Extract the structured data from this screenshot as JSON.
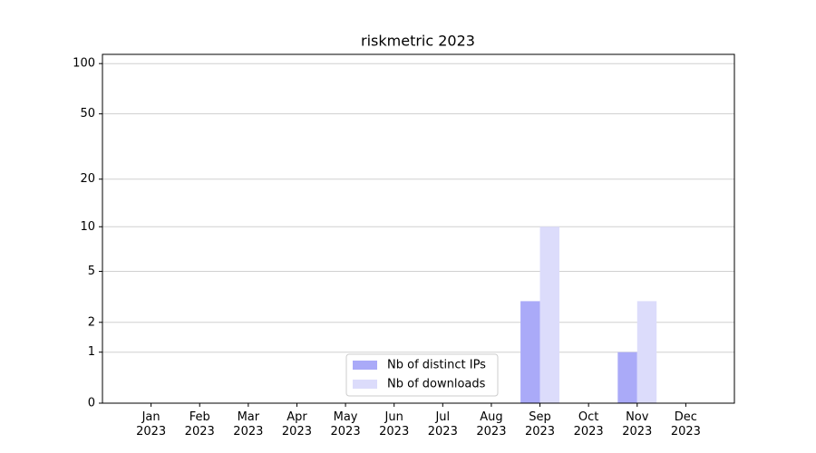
{
  "chart_data": {
    "type": "bar",
    "title": "riskmetric 2023",
    "categories": [
      "Jan\n2023",
      "Feb\n2023",
      "Mar\n2023",
      "Apr\n2023",
      "May\n2023",
      "Jun\n2023",
      "Jul\n2023",
      "Aug\n2023",
      "Sep\n2023",
      "Oct\n2023",
      "Nov\n2023",
      "Dec\n2023"
    ],
    "series": [
      {
        "name": "Nb of distinct IPs",
        "color": "#aaaaf8",
        "values": [
          0,
          0,
          0,
          0,
          0,
          0,
          0,
          0,
          3,
          0,
          1,
          0
        ]
      },
      {
        "name": "Nb of downloads",
        "color": "#dcdcfb",
        "values": [
          0,
          0,
          0,
          0,
          0,
          0,
          0,
          0,
          10,
          0,
          3,
          0
        ]
      }
    ],
    "yscale": "log1p",
    "ylim": [
      0,
      113.5
    ],
    "yticks": [
      0,
      1,
      2,
      5,
      10,
      20,
      50,
      100
    ],
    "grid": true,
    "legend": "lower center"
  }
}
